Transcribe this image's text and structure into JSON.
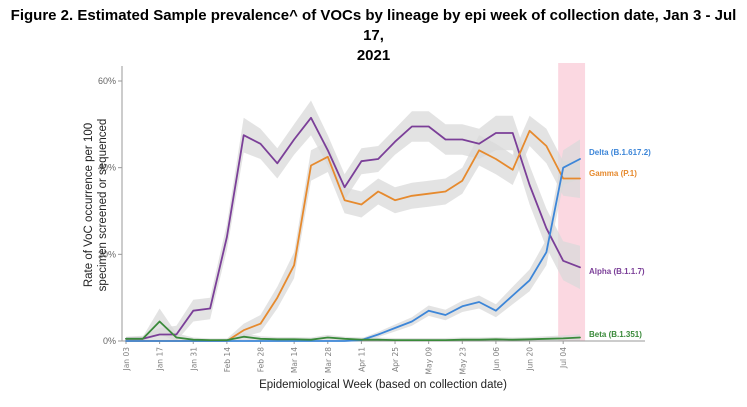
{
  "title_line1": "Figure 2. Estimated Sample prevalence^ of VOCs by lineage by epi week of collection date, Jan 3 - Jul 17,",
  "title_line2": "2021",
  "chart_data": {
    "type": "line",
    "xlabel": "Epidemiological Week (based on collection date)",
    "ylabel_line1": "Rate of VoC occurrence per 100",
    "ylabel_line2": "specimen screened or sequenced",
    "ylim": [
      0,
      60
    ],
    "yticks": [
      0,
      20,
      40,
      60
    ],
    "ytick_labels": [
      "0%",
      "20%",
      "40%",
      "60%"
    ],
    "x_weeks": [
      "Jan 03",
      "Jan 10",
      "Jan 17",
      "Jan 24",
      "Jan 31",
      "Feb 07",
      "Feb 14",
      "Feb 21",
      "Feb 28",
      "Mar 07",
      "Mar 14",
      "Mar 21",
      "Mar 28",
      "Apr 04",
      "Apr 11",
      "Apr 18",
      "Apr 25",
      "May 02",
      "May 09",
      "May 16",
      "May 23",
      "May 30",
      "Jun 06",
      "Jun 13",
      "Jun 20",
      "Jun 27",
      "Jul 04",
      "Jul 11"
    ],
    "xtick_labels": [
      "Jan 03",
      "Jan 17",
      "Jan 31",
      "Feb 14",
      "Feb 28",
      "Mar 14",
      "Mar 28",
      "Apr 11",
      "Apr 25",
      "May 09",
      "May 23",
      "Jun 06",
      "Jun 20",
      "Jul 04"
    ],
    "xtick_index": [
      0,
      2,
      4,
      6,
      8,
      10,
      12,
      14,
      16,
      18,
      20,
      22,
      24,
      26
    ],
    "highlight_week_range": [
      "Jul 04",
      "Jul 11"
    ],
    "highlight_color": "#fad1dc",
    "band_color": "#d9d9d9",
    "series": [
      {
        "name": "Alpha (B.1.1.7)",
        "color": "#7b3f98",
        "values": [
          0.5,
          0.5,
          1.5,
          1.5,
          7,
          7.5,
          24,
          47.5,
          45.5,
          41,
          46.5,
          51.5,
          44,
          35.5,
          41.5,
          42,
          46,
          49.5,
          49.5,
          46.5,
          46.5,
          45.5,
          48,
          48,
          36,
          26,
          18.5,
          17
        ],
        "band": [
          0.5,
          0.7,
          1.5,
          2,
          2.5,
          2.5,
          3,
          4,
          3.5,
          3.5,
          3.5,
          4,
          3.5,
          3,
          3,
          3,
          3,
          3.5,
          3.5,
          3.5,
          3.5,
          3.5,
          4,
          4,
          4.5,
          4.5,
          4.5,
          5
        ]
      },
      {
        "name": "Gamma (P.1)",
        "color": "#e68a2e",
        "values": [
          0,
          0,
          0,
          0,
          0,
          0,
          0,
          2.5,
          4,
          10,
          17.5,
          40.5,
          42.5,
          32.5,
          31.5,
          34.5,
          32.5,
          33.5,
          34,
          34.5,
          37,
          44,
          42,
          39.5,
          48.5,
          45,
          37.5,
          37.5
        ],
        "band": [
          0.2,
          0.2,
          0.2,
          0.2,
          0.2,
          0.3,
          0.5,
          1.5,
          2,
          2.5,
          3,
          3.5,
          3.5,
          3,
          3,
          3,
          3,
          3,
          3,
          3,
          3,
          3.5,
          3.5,
          3.5,
          3.5,
          4,
          4,
          4.5
        ]
      },
      {
        "name": "Delta (B.1.617.2)",
        "color": "#3d86d8",
        "values": [
          0,
          0,
          0,
          0,
          0,
          0,
          0,
          0,
          0,
          0,
          0,
          0,
          0,
          0,
          0.2,
          1.5,
          3,
          4.5,
          7,
          6,
          8,
          9,
          7,
          10.5,
          14,
          20.5,
          40,
          42
        ],
        "band": [
          0.1,
          0.1,
          0.1,
          0.1,
          0.1,
          0.1,
          0.1,
          0.1,
          0.1,
          0.1,
          0.1,
          0.1,
          0.2,
          0.3,
          0.4,
          0.6,
          0.8,
          1,
          1.2,
          1.2,
          1.3,
          1.5,
          1.5,
          2,
          2.5,
          3,
          4,
          4.5
        ]
      },
      {
        "name": "Beta (B.1.351)",
        "color": "#3a8a3a",
        "values": [
          0.5,
          0.5,
          4.5,
          0.8,
          0.3,
          0.2,
          0.2,
          1,
          0.5,
          0.4,
          0.4,
          0.3,
          0.8,
          0.5,
          0.3,
          0.3,
          0.2,
          0.2,
          0.2,
          0.2,
          0.3,
          0.3,
          0.4,
          0.3,
          0.4,
          0.5,
          0.6,
          0.8
        ],
        "band": [
          0.4,
          0.5,
          3,
          1,
          0.5,
          0.4,
          0.4,
          0.8,
          0.6,
          0.5,
          0.5,
          0.5,
          0.6,
          0.5,
          0.5,
          0.5,
          0.5,
          0.5,
          0.5,
          0.5,
          0.5,
          0.5,
          0.5,
          0.5,
          0.5,
          0.6,
          0.7,
          0.8
        ]
      }
    ]
  }
}
